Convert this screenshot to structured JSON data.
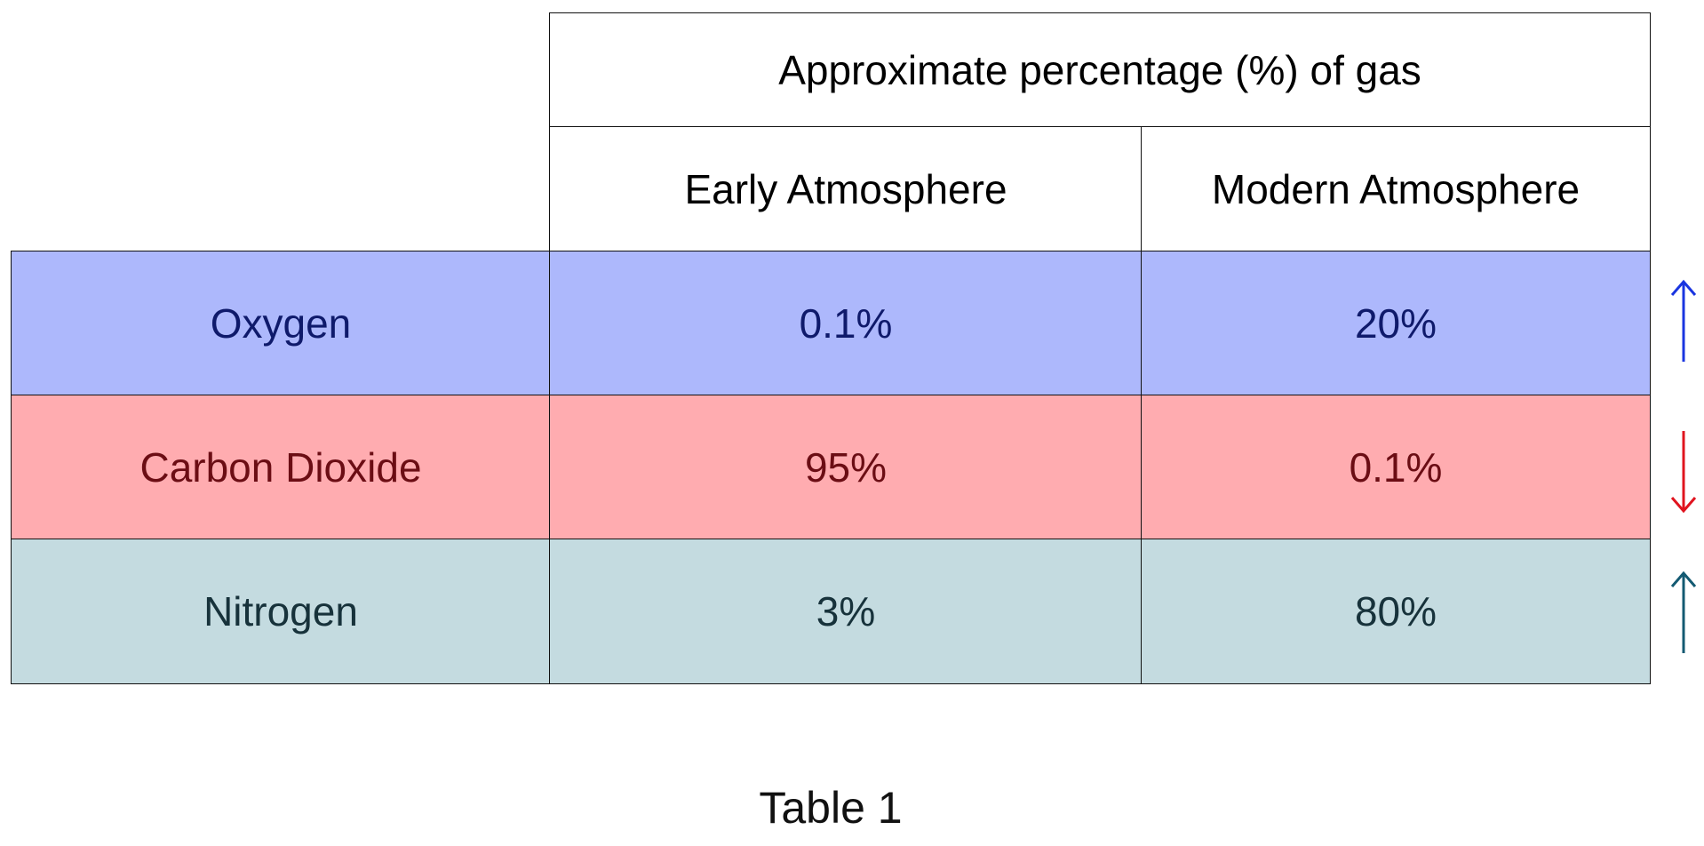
{
  "table": {
    "header_top": "Approximate percentage (%) of gas",
    "columns": [
      "Early Atmosphere",
      "Modern Atmosphere"
    ],
    "rows": [
      {
        "label": "Oxygen",
        "early": "0.1%",
        "modern": "20%",
        "trend": "up",
        "bg_color": "#adb8fc",
        "text_color": "#0f1a6b",
        "arrow_color": "#1a35e0"
      },
      {
        "label": "Carbon Dioxide",
        "early": "95%",
        "modern": "0.1%",
        "trend": "down",
        "bg_color": "#ffacb0",
        "text_color": "#6b0d14",
        "arrow_color": "#e0141f"
      },
      {
        "label": "Nitrogen",
        "early": "3%",
        "modern": "80%",
        "trend": "up",
        "bg_color": "#c4dbe0",
        "text_color": "#17323b",
        "arrow_color": "#135a72"
      }
    ]
  },
  "caption": "Table 1",
  "icons": {
    "row_trend_icons": [
      "arrow-up-icon",
      "arrow-down-icon",
      "arrow-up-icon"
    ]
  }
}
